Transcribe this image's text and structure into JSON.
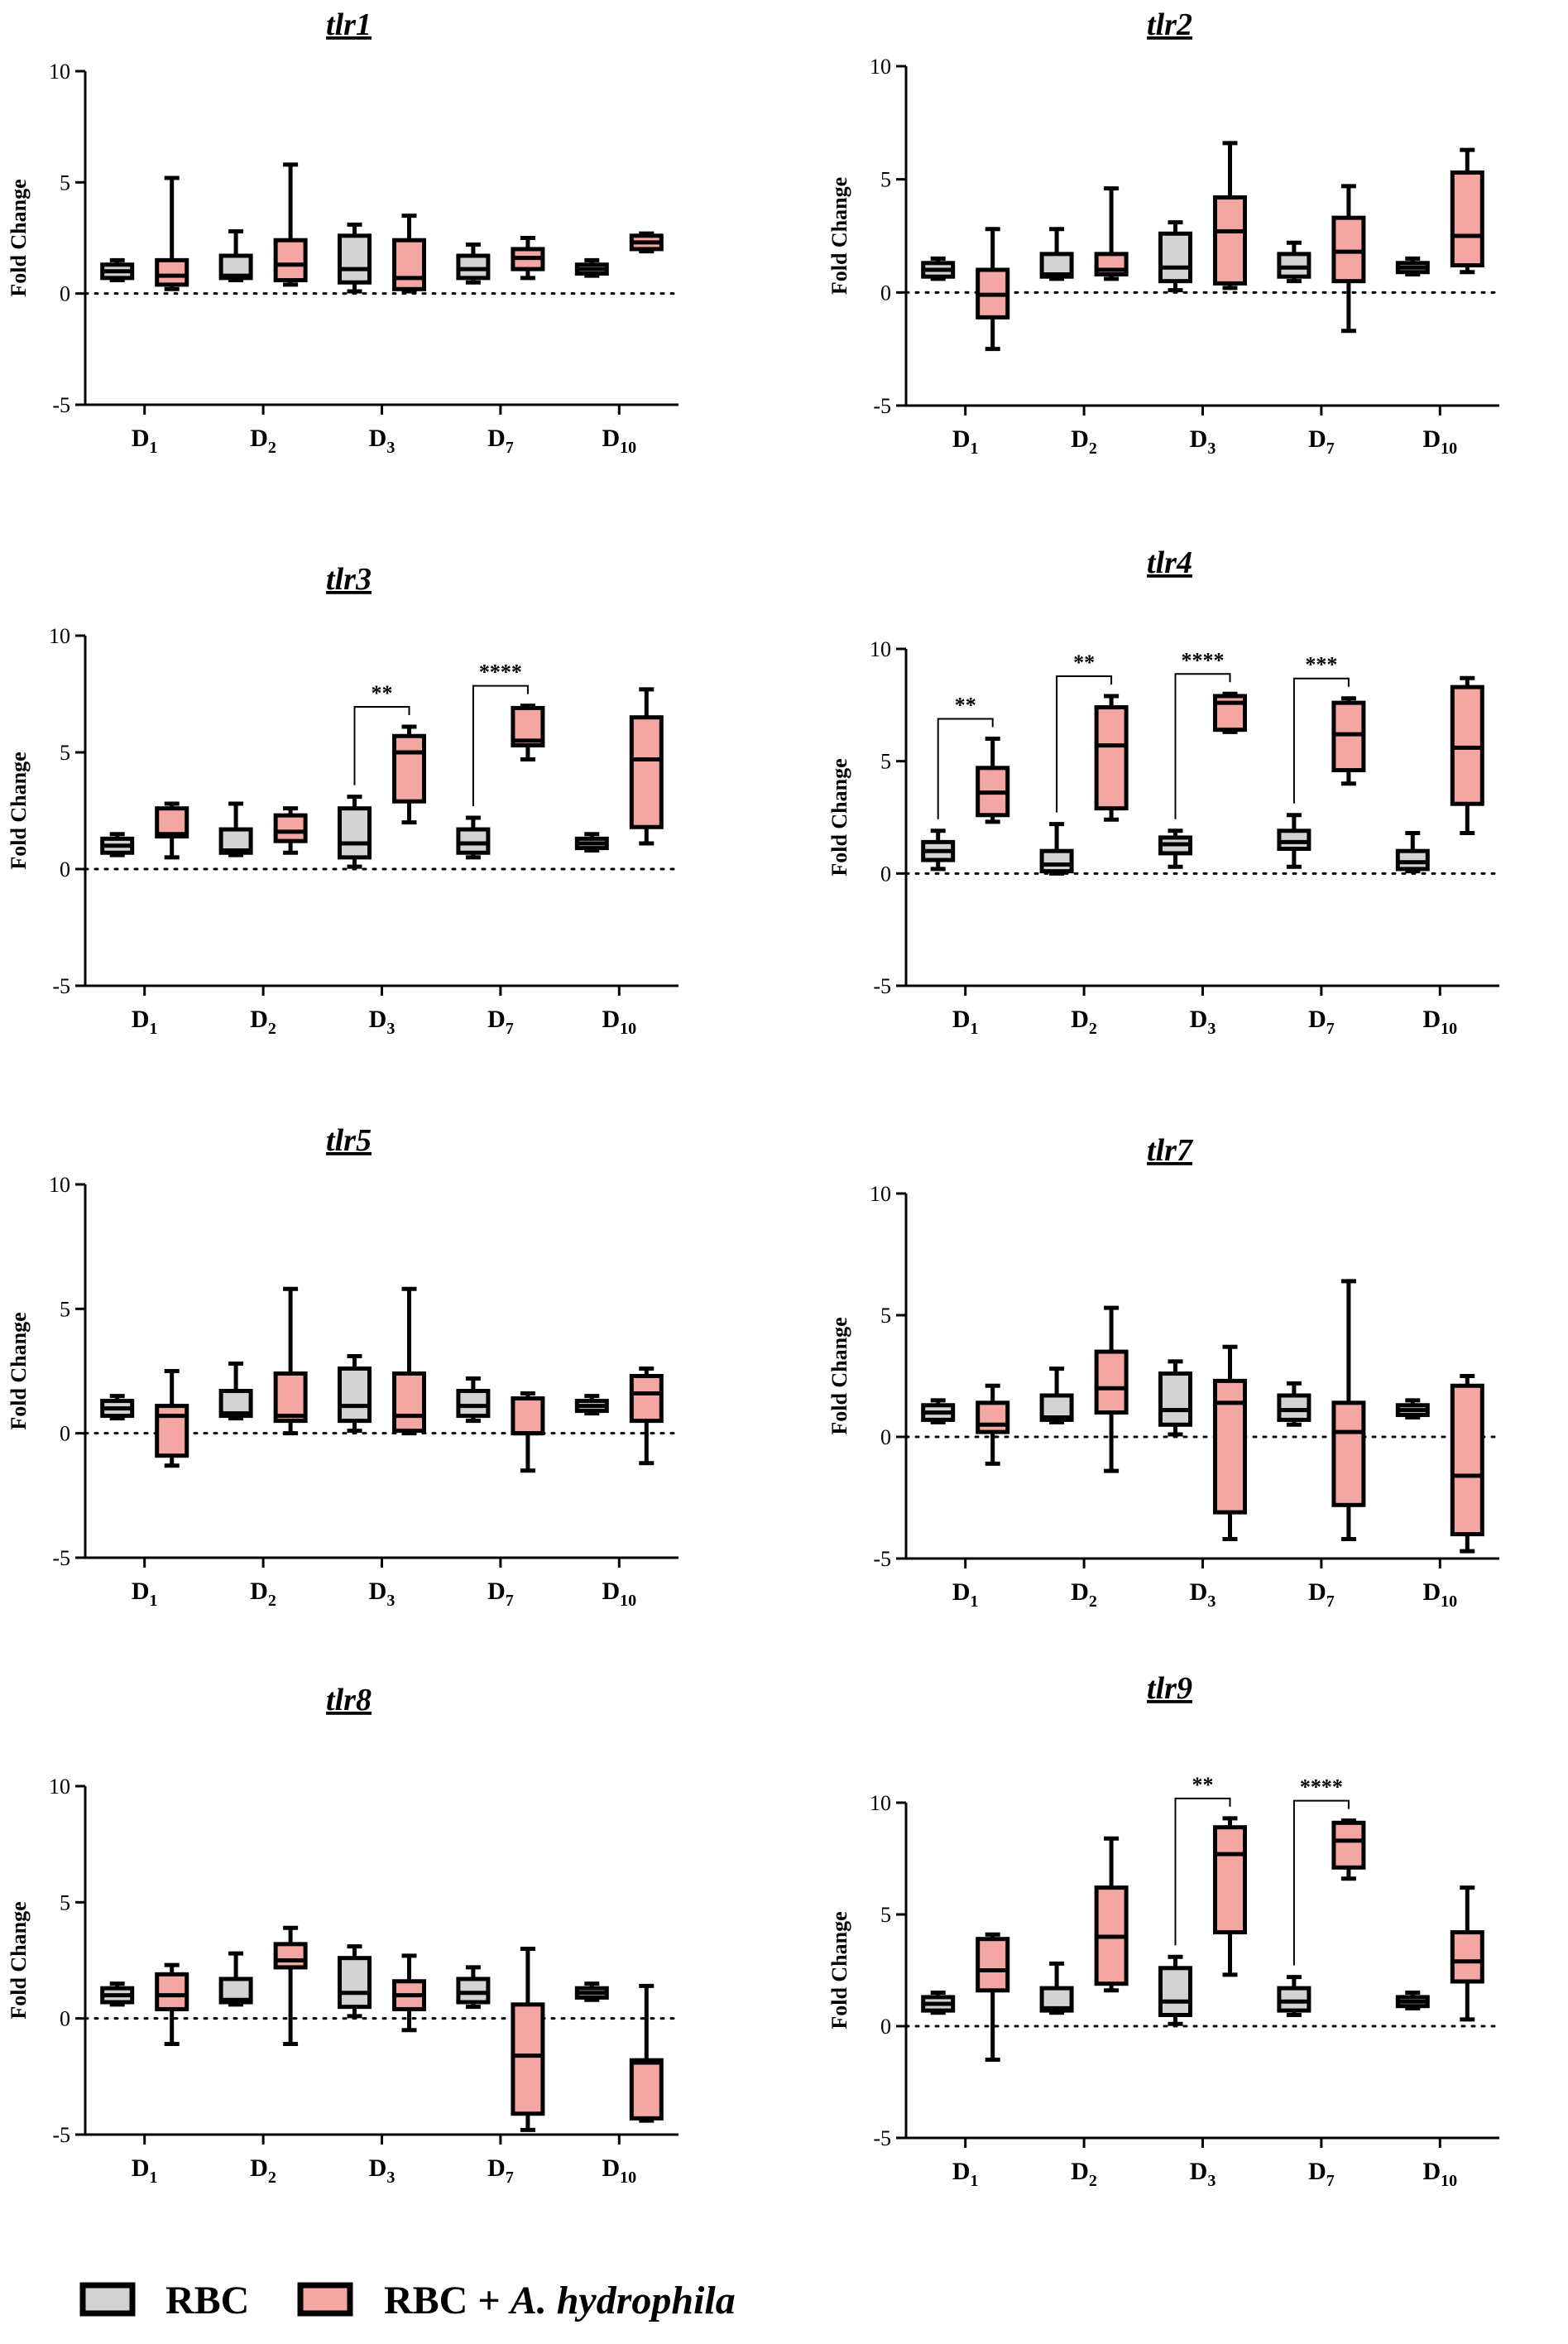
{
  "colors": {
    "rbc": "#d3d3d3",
    "rbc_ah": "#f4a6a2",
    "stroke": "#000000"
  },
  "legend": {
    "rbc": "RBC",
    "rbc_ah_prefix": "RBC + ",
    "rbc_ah_italic": "A. hydrophila"
  },
  "chart_data": [
    {
      "type": "box",
      "title": "tlr1",
      "ylabel": "Fold Change",
      "ylim": [
        -5,
        10
      ],
      "yticks": [
        10,
        5,
        0,
        -5
      ],
      "categories": [
        "D1",
        "D2",
        "D3",
        "D7",
        "D10"
      ],
      "category_main": [
        "D",
        "D",
        "D",
        "D",
        "D"
      ],
      "category_sub": [
        "1",
        "2",
        "3",
        "7",
        "10"
      ],
      "series": [
        {
          "name": "RBC",
          "boxes": [
            {
              "min": 0.6,
              "q1": 0.7,
              "median": 1.0,
              "q3": 1.3,
              "max": 1.5
            },
            {
              "min": 0.6,
              "q1": 0.7,
              "median": 0.8,
              "q3": 1.7,
              "max": 2.8
            },
            {
              "min": 0.1,
              "q1": 0.5,
              "median": 1.1,
              "q3": 2.6,
              "max": 3.1
            },
            {
              "min": 0.5,
              "q1": 0.7,
              "median": 1.1,
              "q3": 1.7,
              "max": 2.2
            },
            {
              "min": 0.8,
              "q1": 0.9,
              "median": 1.1,
              "q3": 1.3,
              "max": 1.5
            }
          ]
        },
        {
          "name": "RBC + A. hydrophila",
          "boxes": [
            {
              "min": 0.2,
              "q1": 0.4,
              "median": 0.8,
              "q3": 1.5,
              "max": 5.2
            },
            {
              "min": 0.4,
              "q1": 0.6,
              "median": 1.3,
              "q3": 2.4,
              "max": 5.8
            },
            {
              "min": 0.1,
              "q1": 0.2,
              "median": 0.7,
              "q3": 2.4,
              "max": 3.5
            },
            {
              "min": 0.7,
              "q1": 1.1,
              "median": 1.6,
              "q3": 2.0,
              "max": 2.5
            },
            {
              "min": 1.9,
              "q1": 2.0,
              "median": 2.3,
              "q3": 2.6,
              "max": 2.7
            }
          ]
        }
      ],
      "significance": []
    },
    {
      "type": "box",
      "title": "tlr2",
      "ylabel": "Fold Change",
      "ylim": [
        -5,
        10
      ],
      "yticks": [
        10,
        5,
        0,
        -5
      ],
      "categories": [
        "D1",
        "D2",
        "D3",
        "D7",
        "D10"
      ],
      "category_main": [
        "D",
        "D",
        "D",
        "D",
        "D"
      ],
      "category_sub": [
        "1",
        "2",
        "3",
        "7",
        "10"
      ],
      "series": [
        {
          "name": "RBC",
          "boxes": [
            {
              "min": 0.6,
              "q1": 0.7,
              "median": 1.0,
              "q3": 1.3,
              "max": 1.5
            },
            {
              "min": 0.6,
              "q1": 0.7,
              "median": 0.8,
              "q3": 1.7,
              "max": 2.8
            },
            {
              "min": 0.1,
              "q1": 0.5,
              "median": 1.1,
              "q3": 2.6,
              "max": 3.1
            },
            {
              "min": 0.5,
              "q1": 0.7,
              "median": 1.1,
              "q3": 1.7,
              "max": 2.2
            },
            {
              "min": 0.8,
              "q1": 0.9,
              "median": 1.1,
              "q3": 1.3,
              "max": 1.5
            }
          ]
        },
        {
          "name": "RBC + A. hydrophila",
          "boxes": [
            {
              "min": -2.5,
              "q1": -1.1,
              "median": -0.1,
              "q3": 1.0,
              "max": 2.8
            },
            {
              "min": 0.6,
              "q1": 0.8,
              "median": 1.0,
              "q3": 1.7,
              "max": 4.6
            },
            {
              "min": 0.2,
              "q1": 0.4,
              "median": 2.7,
              "q3": 4.2,
              "max": 6.6
            },
            {
              "min": -1.7,
              "q1": 0.5,
              "median": 1.8,
              "q3": 3.3,
              "max": 4.7
            },
            {
              "min": 0.9,
              "q1": 1.2,
              "median": 2.5,
              "q3": 5.3,
              "max": 6.3
            }
          ]
        }
      ],
      "significance": []
    },
    {
      "type": "box",
      "title": "tlr3",
      "ylabel": "Fold Change",
      "ylim": [
        -5,
        10
      ],
      "yticks": [
        10,
        5,
        0,
        -5
      ],
      "categories": [
        "D1",
        "D2",
        "D3",
        "D7",
        "D10"
      ],
      "category_main": [
        "D",
        "D",
        "D",
        "D",
        "D"
      ],
      "category_sub": [
        "1",
        "2",
        "3",
        "7",
        "10"
      ],
      "series": [
        {
          "name": "RBC",
          "boxes": [
            {
              "min": 0.6,
              "q1": 0.7,
              "median": 1.0,
              "q3": 1.3,
              "max": 1.5
            },
            {
              "min": 0.6,
              "q1": 0.7,
              "median": 0.8,
              "q3": 1.7,
              "max": 2.8
            },
            {
              "min": 0.1,
              "q1": 0.5,
              "median": 1.1,
              "q3": 2.6,
              "max": 3.1
            },
            {
              "min": 0.5,
              "q1": 0.7,
              "median": 1.1,
              "q3": 1.7,
              "max": 2.2
            },
            {
              "min": 0.8,
              "q1": 0.9,
              "median": 1.1,
              "q3": 1.3,
              "max": 1.5
            }
          ]
        },
        {
          "name": "RBC + A. hydrophila",
          "boxes": [
            {
              "min": 0.5,
              "q1": 1.4,
              "median": 1.5,
              "q3": 2.6,
              "max": 2.8
            },
            {
              "min": 0.7,
              "q1": 1.2,
              "median": 1.6,
              "q3": 2.3,
              "max": 2.6
            },
            {
              "min": 2.0,
              "q1": 2.9,
              "median": 5.0,
              "q3": 5.7,
              "max": 6.1
            },
            {
              "min": 4.7,
              "q1": 5.3,
              "median": 5.5,
              "q3": 6.9,
              "max": 7.0
            },
            {
              "min": 1.1,
              "q1": 1.8,
              "median": 4.7,
              "q3": 6.5,
              "max": 7.7
            }
          ]
        }
      ],
      "significance": [
        {
          "category": "D3",
          "label": "**"
        },
        {
          "category": "D7",
          "label": "****"
        }
      ]
    },
    {
      "type": "box",
      "title": "tlr4",
      "ylabel": "Fold Change",
      "ylim": [
        -5,
        10
      ],
      "yticks": [
        10,
        5,
        0,
        -5
      ],
      "categories": [
        "D1",
        "D2",
        "D3",
        "D7",
        "D10"
      ],
      "category_main": [
        "D",
        "D",
        "D",
        "D",
        "D"
      ],
      "category_sub": [
        "1",
        "2",
        "3",
        "7",
        "10"
      ],
      "series": [
        {
          "name": "RBC",
          "boxes": [
            {
              "min": 0.2,
              "q1": 0.6,
              "median": 1.0,
              "q3": 1.4,
              "max": 1.9
            },
            {
              "min": 0.0,
              "q1": 0.1,
              "median": 0.4,
              "q3": 1.0,
              "max": 2.2
            },
            {
              "min": 0.3,
              "q1": 0.9,
              "median": 1.3,
              "q3": 1.6,
              "max": 1.9
            },
            {
              "min": 0.3,
              "q1": 1.1,
              "median": 1.4,
              "q3": 1.9,
              "max": 2.6
            },
            {
              "min": 0.1,
              "q1": 0.2,
              "median": 0.5,
              "q3": 1.0,
              "max": 1.8
            }
          ]
        },
        {
          "name": "RBC + A. hydrophila",
          "boxes": [
            {
              "min": 2.3,
              "q1": 2.6,
              "median": 3.6,
              "q3": 4.7,
              "max": 6.0
            },
            {
              "min": 2.4,
              "q1": 2.9,
              "median": 5.7,
              "q3": 7.4,
              "max": 7.9
            },
            {
              "min": 6.3,
              "q1": 6.4,
              "median": 7.6,
              "q3": 7.9,
              "max": 8.0
            },
            {
              "min": 4.0,
              "q1": 4.6,
              "median": 6.2,
              "q3": 7.6,
              "max": 7.8
            },
            {
              "min": 1.8,
              "q1": 3.1,
              "median": 5.6,
              "q3": 8.3,
              "max": 8.7
            }
          ]
        }
      ],
      "significance": [
        {
          "category": "D1",
          "label": "**"
        },
        {
          "category": "D2",
          "label": "**"
        },
        {
          "category": "D3",
          "label": "****"
        },
        {
          "category": "D7",
          "label": "***"
        }
      ]
    },
    {
      "type": "box",
      "title": "tlr5",
      "ylabel": "Fold Change",
      "ylim": [
        -5,
        10
      ],
      "yticks": [
        10,
        5,
        0,
        -5
      ],
      "categories": [
        "D1",
        "D2",
        "D3",
        "D7",
        "D10"
      ],
      "category_main": [
        "D",
        "D",
        "D",
        "D",
        "D"
      ],
      "category_sub": [
        "1",
        "2",
        "3",
        "7",
        "10"
      ],
      "series": [
        {
          "name": "RBC",
          "boxes": [
            {
              "min": 0.6,
              "q1": 0.7,
              "median": 1.0,
              "q3": 1.3,
              "max": 1.5
            },
            {
              "min": 0.6,
              "q1": 0.7,
              "median": 0.8,
              "q3": 1.7,
              "max": 2.8
            },
            {
              "min": 0.1,
              "q1": 0.5,
              "median": 1.1,
              "q3": 2.6,
              "max": 3.1
            },
            {
              "min": 0.5,
              "q1": 0.7,
              "median": 1.1,
              "q3": 1.7,
              "max": 2.2
            },
            {
              "min": 0.8,
              "q1": 0.9,
              "median": 1.1,
              "q3": 1.3,
              "max": 1.5
            }
          ]
        },
        {
          "name": "RBC + A. hydrophila",
          "boxes": [
            {
              "min": -1.3,
              "q1": -0.9,
              "median": 0.7,
              "q3": 1.1,
              "max": 2.5
            },
            {
              "min": 0.0,
              "q1": 0.5,
              "median": 0.7,
              "q3": 2.4,
              "max": 5.8
            },
            {
              "min": 0.0,
              "q1": 0.1,
              "median": 0.7,
              "q3": 2.4,
              "max": 5.8
            },
            {
              "min": -1.5,
              "q1": 0.0,
              "median": 0.0,
              "q3": 1.4,
              "max": 1.6
            },
            {
              "min": -1.2,
              "q1": 0.5,
              "median": 1.6,
              "q3": 2.3,
              "max": 2.6
            }
          ]
        }
      ],
      "significance": []
    },
    {
      "type": "box",
      "title": "tlr7",
      "ylabel": "Fold Change",
      "ylim": [
        -5,
        10
      ],
      "yticks": [
        10,
        5,
        0,
        -5
      ],
      "categories": [
        "D1",
        "D2",
        "D3",
        "D7",
        "D10"
      ],
      "category_main": [
        "D",
        "D",
        "D",
        "D",
        "D"
      ],
      "category_sub": [
        "1",
        "2",
        "3",
        "7",
        "10"
      ],
      "series": [
        {
          "name": "RBC",
          "boxes": [
            {
              "min": 0.6,
              "q1": 0.7,
              "median": 1.0,
              "q3": 1.3,
              "max": 1.5
            },
            {
              "min": 0.6,
              "q1": 0.7,
              "median": 0.8,
              "q3": 1.7,
              "max": 2.8
            },
            {
              "min": 0.1,
              "q1": 0.5,
              "median": 1.1,
              "q3": 2.6,
              "max": 3.1
            },
            {
              "min": 0.5,
              "q1": 0.7,
              "median": 1.1,
              "q3": 1.7,
              "max": 2.2
            },
            {
              "min": 0.8,
              "q1": 0.9,
              "median": 1.1,
              "q3": 1.3,
              "max": 1.5
            }
          ]
        },
        {
          "name": "RBC + A. hydrophila",
          "boxes": [
            {
              "min": -1.1,
              "q1": 0.2,
              "median": 0.5,
              "q3": 1.4,
              "max": 2.1
            },
            {
              "min": -1.4,
              "q1": 1.0,
              "median": 2.0,
              "q3": 3.5,
              "max": 5.3
            },
            {
              "min": -4.2,
              "q1": -3.1,
              "median": 1.4,
              "q3": 2.3,
              "max": 3.7
            },
            {
              "min": -4.2,
              "q1": -2.8,
              "median": 0.2,
              "q3": 1.4,
              "max": 6.4
            },
            {
              "min": -4.7,
              "q1": -4.0,
              "median": -1.6,
              "q3": 2.1,
              "max": 2.5
            }
          ]
        }
      ],
      "significance": []
    },
    {
      "type": "box",
      "title": "tlr8",
      "ylabel": "Fold Change",
      "ylim": [
        -5,
        10
      ],
      "yticks": [
        10,
        5,
        0,
        -5
      ],
      "categories": [
        "D1",
        "D2",
        "D3",
        "D7",
        "D10"
      ],
      "category_main": [
        "D",
        "D",
        "D",
        "D",
        "D"
      ],
      "category_sub": [
        "1",
        "2",
        "3",
        "7",
        "10"
      ],
      "series": [
        {
          "name": "RBC",
          "boxes": [
            {
              "min": 0.6,
              "q1": 0.7,
              "median": 1.0,
              "q3": 1.3,
              "max": 1.5
            },
            {
              "min": 0.6,
              "q1": 0.7,
              "median": 0.8,
              "q3": 1.7,
              "max": 2.8
            },
            {
              "min": 0.1,
              "q1": 0.5,
              "median": 1.1,
              "q3": 2.6,
              "max": 3.1
            },
            {
              "min": 0.5,
              "q1": 0.7,
              "median": 1.1,
              "q3": 1.7,
              "max": 2.2
            },
            {
              "min": 0.8,
              "q1": 0.9,
              "median": 1.1,
              "q3": 1.3,
              "max": 1.5
            }
          ]
        },
        {
          "name": "RBC + A. hydrophila",
          "boxes": [
            {
              "min": -1.1,
              "q1": 0.4,
              "median": 1.0,
              "q3": 1.9,
              "max": 2.3
            },
            {
              "min": -1.1,
              "q1": 2.2,
              "median": 2.5,
              "q3": 3.2,
              "max": 3.9
            },
            {
              "min": -0.5,
              "q1": 0.4,
              "median": 1.0,
              "q3": 1.6,
              "max": 2.7
            },
            {
              "min": -4.8,
              "q1": -4.1,
              "median": -1.6,
              "q3": 0.6,
              "max": 3.0
            },
            {
              "min": -4.4,
              "q1": -4.3,
              "median": -1.9,
              "q3": -1.8,
              "max": 1.4
            }
          ]
        }
      ],
      "significance": []
    },
    {
      "type": "box",
      "title": "tlr9",
      "ylabel": "Fold Change",
      "ylim": [
        -5,
        10
      ],
      "yticks": [
        10,
        5,
        0,
        -5
      ],
      "categories": [
        "D1",
        "D2",
        "D3",
        "D7",
        "D10"
      ],
      "category_main": [
        "D",
        "D",
        "D",
        "D",
        "D"
      ],
      "category_sub": [
        "1",
        "2",
        "3",
        "7",
        "10"
      ],
      "series": [
        {
          "name": "RBC",
          "boxes": [
            {
              "min": 0.6,
              "q1": 0.7,
              "median": 1.0,
              "q3": 1.3,
              "max": 1.5
            },
            {
              "min": 0.6,
              "q1": 0.7,
              "median": 0.8,
              "q3": 1.7,
              "max": 2.8
            },
            {
              "min": 0.1,
              "q1": 0.5,
              "median": 1.1,
              "q3": 2.6,
              "max": 3.1
            },
            {
              "min": 0.5,
              "q1": 0.7,
              "median": 1.1,
              "q3": 1.7,
              "max": 2.2
            },
            {
              "min": 0.8,
              "q1": 0.9,
              "median": 1.1,
              "q3": 1.3,
              "max": 1.5
            }
          ]
        },
        {
          "name": "RBC + A. hydrophila",
          "boxes": [
            {
              "min": -1.5,
              "q1": 1.6,
              "median": 2.5,
              "q3": 3.9,
              "max": 4.1
            },
            {
              "min": 1.6,
              "q1": 1.9,
              "median": 4.0,
              "q3": 6.2,
              "max": 8.4
            },
            {
              "min": 2.3,
              "q1": 4.2,
              "median": 7.7,
              "q3": 8.9,
              "max": 9.3
            },
            {
              "min": 6.6,
              "q1": 7.1,
              "median": 8.3,
              "q3": 9.1,
              "max": 9.2
            },
            {
              "min": 0.3,
              "q1": 2.0,
              "median": 2.9,
              "q3": 4.2,
              "max": 6.2
            }
          ]
        }
      ],
      "significance": [
        {
          "category": "D3",
          "label": "**"
        },
        {
          "category": "D7",
          "label": "****"
        }
      ]
    }
  ]
}
